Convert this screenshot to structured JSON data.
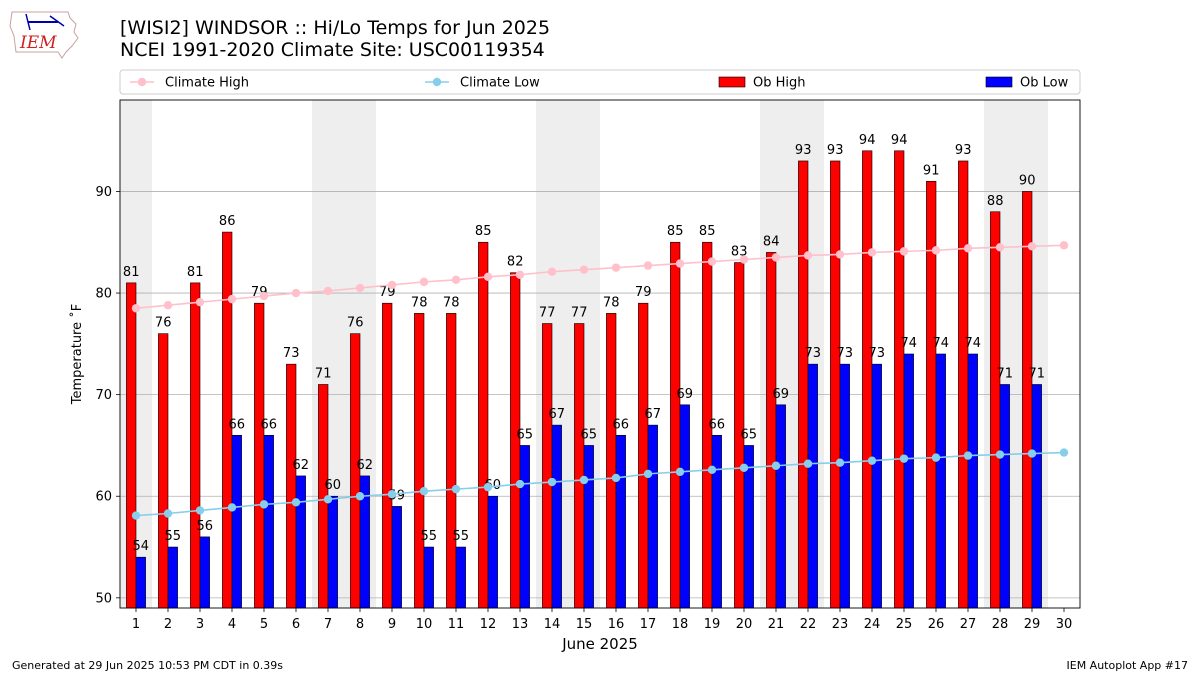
{
  "header": {
    "logo_text": "IEM",
    "title_line1": "[WISI2] WINDSOR :: Hi/Lo Temps for Jun 2025",
    "title_line2": "NCEI 1991-2020 Climate Site: USC00119354"
  },
  "footer": {
    "left": "Generated at 29 Jun 2025 10:53 PM CDT in 0.39s",
    "right": "IEM Autoplot App #17"
  },
  "colors": {
    "ob_high": "#ff0000",
    "ob_low": "#0000ff",
    "climate_high": "#ffc0cb",
    "climate_low": "#87ceeb",
    "weekend_shade": "#eeeeee",
    "grid": "#b0b0b0"
  },
  "chart_data": {
    "type": "bar",
    "xlabel": "June 2025",
    "ylabel": "Temperature ˚F",
    "ylim": [
      49,
      99
    ],
    "xlim": [
      0.5,
      30.5
    ],
    "yticks": [
      50,
      60,
      70,
      80,
      90
    ],
    "grid": "horizontal",
    "legend_position": "top",
    "categories": [
      "1",
      "2",
      "3",
      "4",
      "5",
      "6",
      "7",
      "8",
      "9",
      "10",
      "11",
      "12",
      "13",
      "14",
      "15",
      "16",
      "17",
      "18",
      "19",
      "20",
      "21",
      "22",
      "23",
      "24",
      "25",
      "26",
      "27",
      "28",
      "29",
      "30"
    ],
    "shaded_days": [
      1,
      7,
      8,
      14,
      15,
      21,
      22,
      28,
      29
    ],
    "legend": [
      {
        "label": "Climate High",
        "kind": "line",
        "color": "#ffc0cb"
      },
      {
        "label": "Climate Low",
        "kind": "line",
        "color": "#87ceeb"
      },
      {
        "label": "Ob High",
        "kind": "bar",
        "color": "#ff0000"
      },
      {
        "label": "Ob Low",
        "kind": "bar",
        "color": "#0000ff"
      }
    ],
    "series": [
      {
        "name": "Ob High",
        "kind": "bar",
        "values": [
          81,
          76,
          81,
          86,
          79,
          73,
          71,
          76,
          79,
          78,
          78,
          85,
          82,
          77,
          77,
          78,
          79,
          85,
          85,
          83,
          84,
          93,
          93,
          94,
          94,
          91,
          93,
          88,
          90,
          null
        ]
      },
      {
        "name": "Ob Low",
        "kind": "bar",
        "values": [
          54,
          55,
          56,
          66,
          66,
          62,
          60,
          62,
          59,
          55,
          55,
          60,
          65,
          67,
          65,
          66,
          67,
          69,
          66,
          65,
          69,
          73,
          73,
          73,
          74,
          74,
          74,
          71,
          71,
          null
        ]
      },
      {
        "name": "Climate High",
        "kind": "line",
        "values": [
          78.5,
          78.8,
          79.1,
          79.4,
          79.7,
          80.0,
          80.2,
          80.5,
          80.8,
          81.1,
          81.3,
          81.6,
          81.8,
          82.1,
          82.3,
          82.5,
          82.7,
          82.9,
          83.1,
          83.3,
          83.5,
          83.7,
          83.8,
          84.0,
          84.1,
          84.2,
          84.4,
          84.5,
          84.6,
          84.7
        ]
      },
      {
        "name": "Climate Low",
        "kind": "line",
        "values": [
          58.1,
          58.3,
          58.6,
          58.9,
          59.2,
          59.4,
          59.7,
          60.0,
          60.2,
          60.5,
          60.7,
          60.9,
          61.2,
          61.4,
          61.6,
          61.8,
          62.2,
          62.4,
          62.6,
          62.8,
          63.0,
          63.2,
          63.3,
          63.5,
          63.7,
          63.8,
          64.0,
          64.1,
          64.2,
          64.3
        ]
      }
    ]
  }
}
